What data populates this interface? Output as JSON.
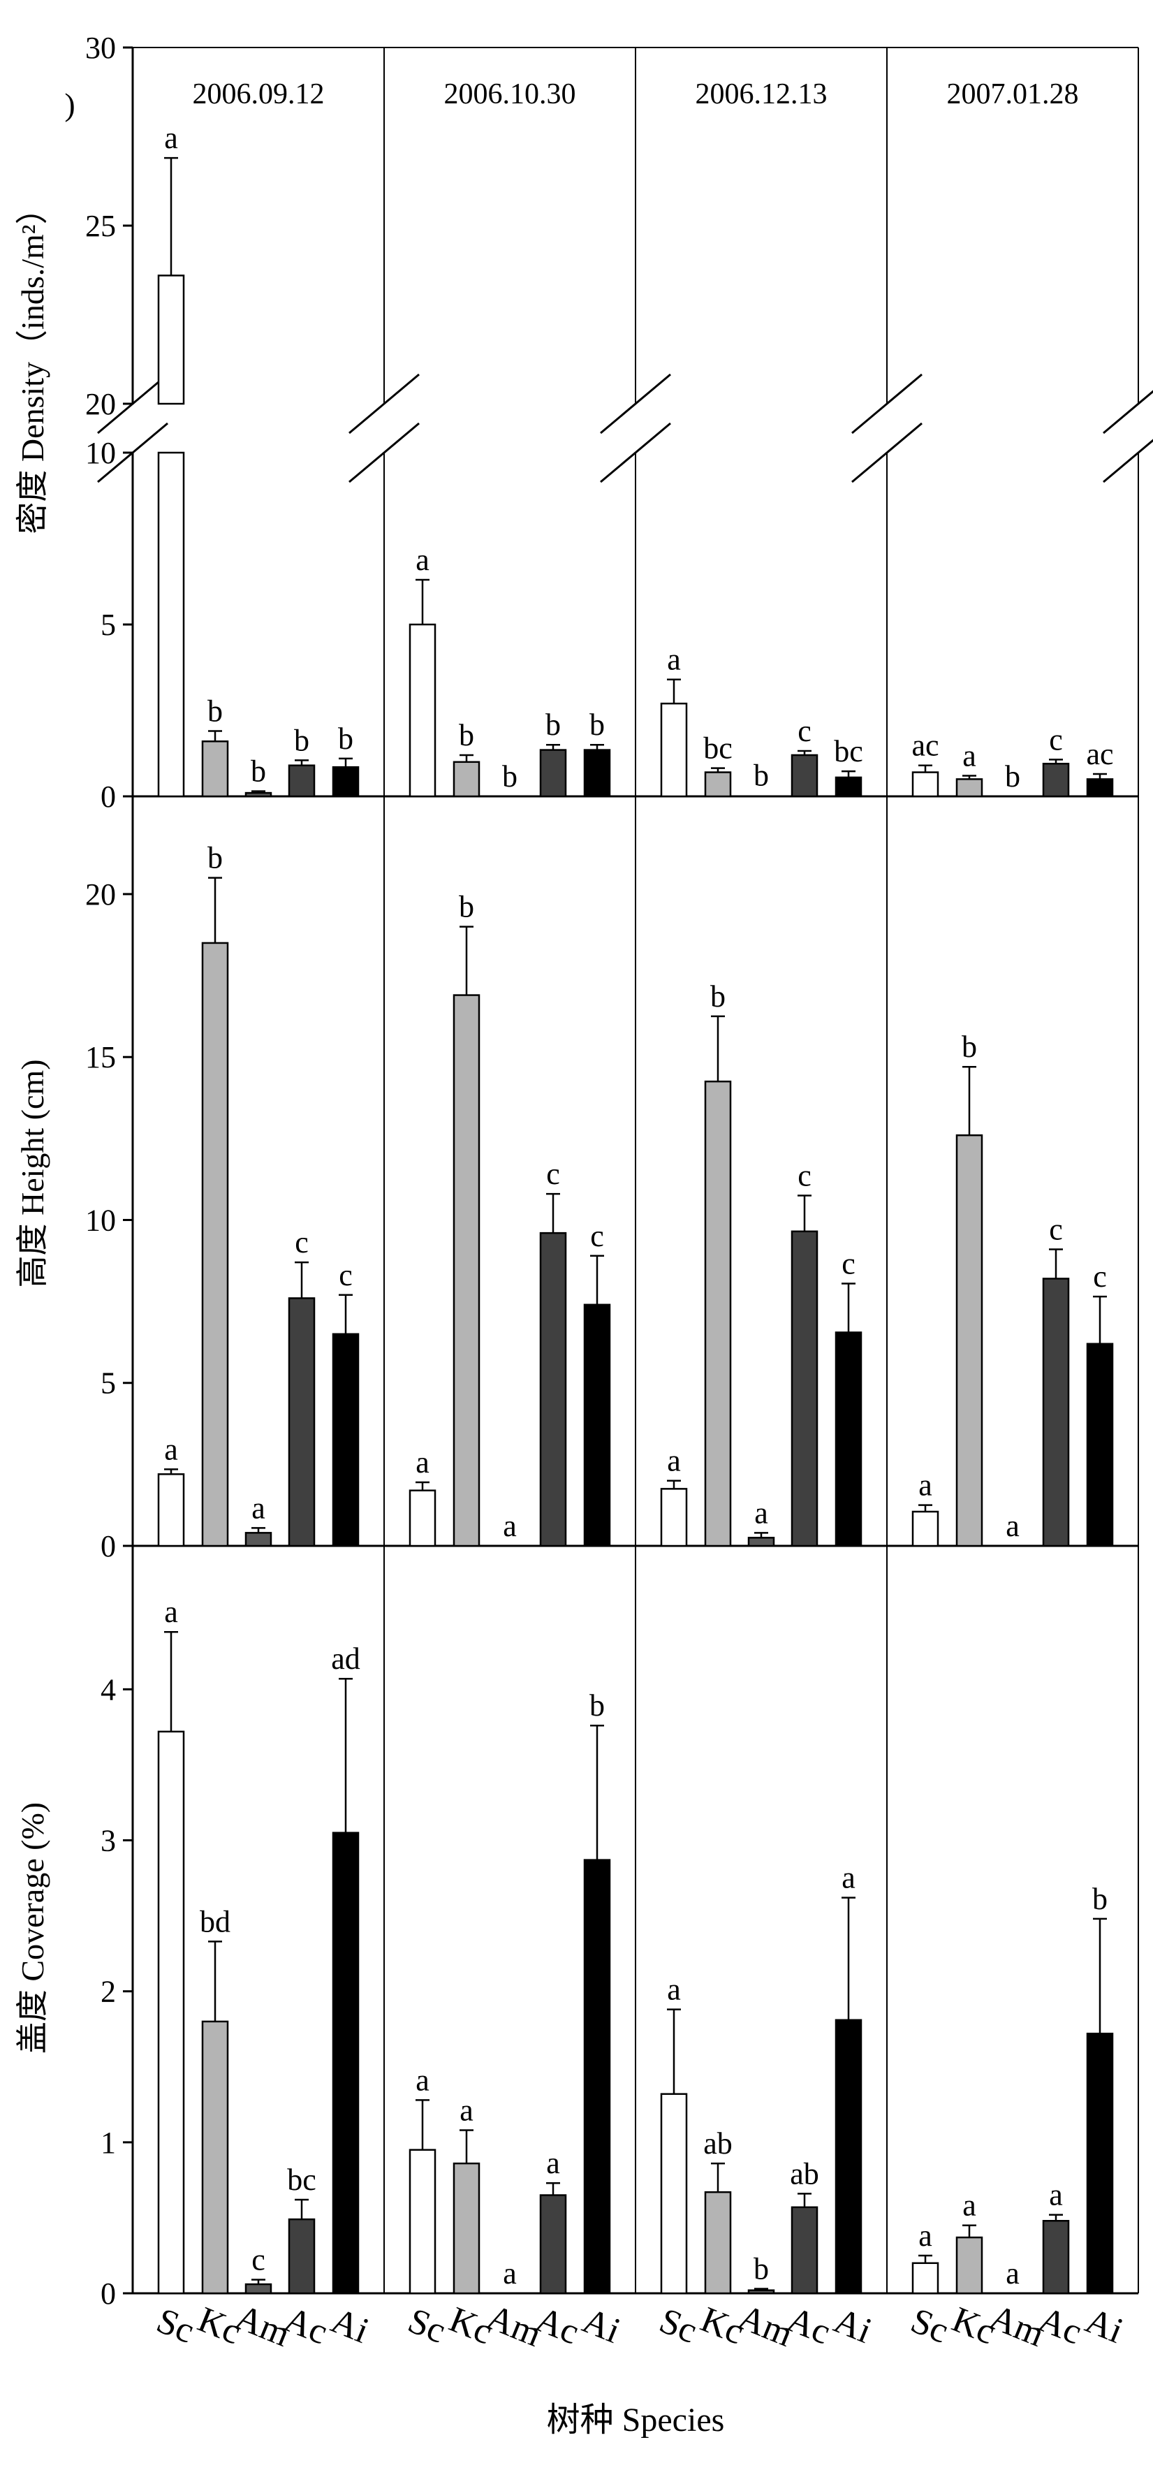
{
  "chart_data": {
    "type": "bar",
    "categories": [
      "Sc",
      "Kc",
      "Am",
      "Ac",
      "Ai"
    ],
    "bar_colors": [
      "#ffffff",
      "#b4b4b4",
      "#585858",
      "#404040",
      "#000000"
    ],
    "dates": [
      "2006.09.12",
      "2006.10.30",
      "2006.12.13",
      "2007.01.28"
    ],
    "xlabel": "树种 Species",
    "panels": [
      {
        "ylabel": "密度 Density（inds./m²）",
        "ylabel_close": ")",
        "broken_axis": {
          "lower_range": [
            0,
            10
          ],
          "upper_range": [
            20,
            30
          ]
        },
        "lower_ticks": [
          0,
          5,
          10
        ],
        "upper_ticks": [
          20,
          25,
          30
        ],
        "groups": [
          {
            "values": [
              23.6,
              1.6,
              0.1,
              0.9,
              0.85
            ],
            "errors": [
              3.3,
              0.3,
              0.05,
              0.15,
              0.25
            ],
            "letters": [
              "a",
              "b",
              "b",
              "b",
              "b"
            ]
          },
          {
            "values": [
              5.0,
              1.0,
              0.0,
              1.35,
              1.35
            ],
            "errors": [
              1.3,
              0.2,
              0.0,
              0.15,
              0.15
            ],
            "letters": [
              "a",
              "b",
              "b",
              "b",
              "b"
            ]
          },
          {
            "values": [
              2.7,
              0.7,
              0.02,
              1.2,
              0.55
            ],
            "errors": [
              0.7,
              0.12,
              0.01,
              0.12,
              0.18
            ],
            "letters": [
              "a",
              "bc",
              "b",
              "c",
              "bc"
            ]
          },
          {
            "values": [
              0.7,
              0.5,
              0.0,
              0.95,
              0.5
            ],
            "errors": [
              0.2,
              0.1,
              0.0,
              0.12,
              0.15
            ],
            "letters": [
              "ac",
              "a",
              "b",
              "c",
              "ac"
            ]
          }
        ]
      },
      {
        "ylabel": "高度 Height (cm)",
        "ylim": [
          0,
          23
        ],
        "ticks": [
          0,
          5,
          10,
          15,
          20
        ],
        "groups": [
          {
            "values": [
              2.2,
              18.5,
              0.4,
              7.6,
              6.5
            ],
            "errors": [
              0.15,
              2.0,
              0.15,
              1.1,
              1.2
            ],
            "letters": [
              "a",
              "b",
              "a",
              "c",
              "c"
            ]
          },
          {
            "values": [
              1.7,
              16.9,
              0.0,
              9.6,
              7.4
            ],
            "errors": [
              0.25,
              2.1,
              0.0,
              1.2,
              1.5
            ],
            "letters": [
              "a",
              "b",
              "a",
              "c",
              "c"
            ]
          },
          {
            "values": [
              1.75,
              14.25,
              0.25,
              9.65,
              6.55
            ],
            "errors": [
              0.25,
              2.0,
              0.15,
              1.1,
              1.5
            ],
            "letters": [
              "a",
              "b",
              "a",
              "c",
              "c"
            ]
          },
          {
            "values": [
              1.05,
              12.6,
              0.0,
              8.2,
              6.2
            ],
            "errors": [
              0.2,
              2.1,
              0.0,
              0.9,
              1.45
            ],
            "letters": [
              "a",
              "b",
              "a",
              "c",
              "c"
            ]
          }
        ]
      },
      {
        "ylabel": "盖度 Coverage (%)",
        "ylim": [
          0,
          4.95
        ],
        "ticks": [
          0,
          1,
          2,
          3,
          4
        ],
        "groups": [
          {
            "values": [
              3.72,
              1.8,
              0.06,
              0.49,
              3.05
            ],
            "errors": [
              0.66,
              0.53,
              0.03,
              0.13,
              1.02
            ],
            "letters": [
              "a",
              "bd",
              "c",
              "bc",
              "ad"
            ]
          },
          {
            "values": [
              0.95,
              0.86,
              0.0,
              0.65,
              2.87
            ],
            "errors": [
              0.33,
              0.22,
              0.0,
              0.08,
              0.89
            ],
            "letters": [
              "a",
              "a",
              "a",
              "a",
              "b"
            ]
          },
          {
            "values": [
              1.32,
              0.67,
              0.02,
              0.57,
              1.81
            ],
            "errors": [
              0.56,
              0.19,
              0.01,
              0.09,
              0.81
            ],
            "letters": [
              "a",
              "ab",
              "b",
              "ab",
              "a"
            ]
          },
          {
            "values": [
              0.2,
              0.37,
              0.0,
              0.48,
              1.72
            ],
            "errors": [
              0.05,
              0.08,
              0.0,
              0.04,
              0.76
            ],
            "letters": [
              "a",
              "a",
              "a",
              "a",
              "b"
            ]
          }
        ]
      }
    ]
  }
}
